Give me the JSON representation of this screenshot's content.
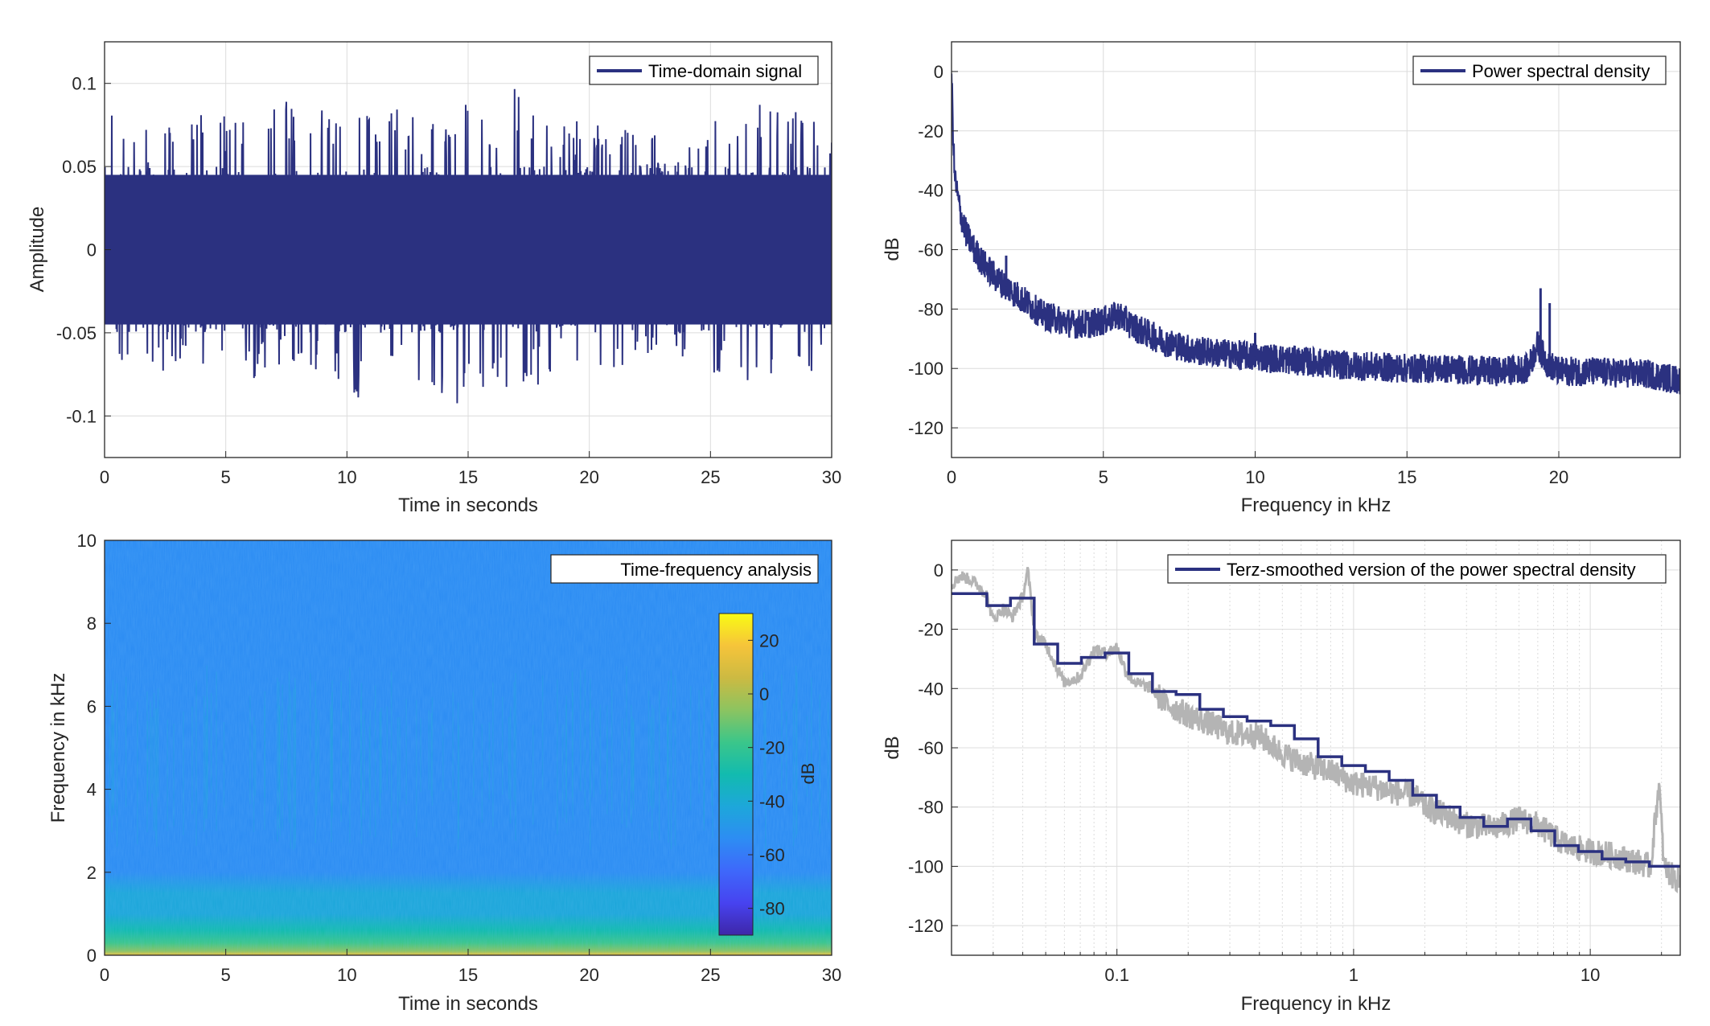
{
  "colors": {
    "signal": "#2B3180",
    "smooth_raw": "#B4B4B4",
    "grid": "#DCDCDC",
    "axis": "#262626",
    "text": "#262626"
  },
  "chart_data": [
    {
      "id": "time-domain",
      "type": "line",
      "legend": [
        "Time-domain signal"
      ],
      "legend_position": "top-right",
      "xlabel": "Time in seconds",
      "ylabel": "Amplitude",
      "xlim": [
        0,
        30
      ],
      "ylim": [
        -0.125,
        0.125
      ],
      "xticks": [
        0,
        5,
        10,
        15,
        20,
        25,
        30
      ],
      "xtick_labels": [
        "0",
        "5",
        "10",
        "15",
        "20",
        "25",
        "30"
      ],
      "yticks": [
        -0.1,
        -0.05,
        0,
        0.05,
        0.1
      ],
      "ytick_labels": [
        "-0.1",
        "-0.05",
        "0",
        "0.05",
        "0.1"
      ],
      "grid": true,
      "envelope": {
        "t": [
          0,
          0.5,
          1,
          2,
          3,
          4,
          5,
          6,
          7,
          8,
          9,
          10,
          11,
          12,
          13,
          14,
          15,
          16,
          16.9,
          18,
          19,
          20,
          21,
          22,
          23,
          24,
          25,
          26,
          27,
          28,
          29,
          30
        ],
        "max": [
          0.105,
          0.09,
          0.07,
          0.075,
          0.08,
          0.095,
          0.08,
          0.085,
          0.09,
          0.09,
          0.085,
          0.08,
          0.085,
          0.09,
          0.08,
          0.075,
          0.09,
          0.08,
          0.102,
          0.08,
          0.075,
          0.08,
          0.075,
          0.07,
          0.07,
          0.065,
          0.08,
          0.085,
          0.09,
          0.085,
          0.09,
          0.075
        ],
        "min": [
          -0.09,
          -0.07,
          -0.08,
          -0.075,
          -0.07,
          -0.085,
          -0.075,
          -0.08,
          -0.075,
          -0.07,
          -0.075,
          -0.095,
          -0.085,
          -0.08,
          -0.085,
          -0.09,
          -0.095,
          -0.08,
          -0.1,
          -0.08,
          -0.075,
          -0.07,
          -0.075,
          -0.065,
          -0.07,
          -0.07,
          -0.075,
          -0.08,
          -0.08,
          -0.085,
          -0.08,
          -0.08
        ]
      }
    },
    {
      "id": "psd",
      "type": "line",
      "legend": [
        "Power spectral density"
      ],
      "legend_position": "top-right",
      "xlabel": "Frequency in kHz",
      "ylabel": "dB",
      "xlim": [
        0,
        24
      ],
      "ylim": [
        -130,
        10
      ],
      "xticks": [
        0,
        5,
        10,
        15,
        20
      ],
      "xtick_labels": [
        "0",
        "5",
        "10",
        "15",
        "20"
      ],
      "yticks": [
        -120,
        -100,
        -80,
        -60,
        -40,
        -20,
        0
      ],
      "ytick_labels": [
        "-120",
        "-100",
        "-80",
        "-60",
        "-40",
        "-20",
        "0"
      ],
      "grid": true,
      "series": [
        {
          "x": [
            0,
            0.05,
            0.1,
            0.2,
            0.3,
            0.5,
            0.75,
            1,
            1.5,
            2,
            2.5,
            3,
            4,
            4.5,
            5,
            5.5,
            6,
            7,
            8,
            9,
            10,
            11,
            12,
            13,
            14,
            15,
            16,
            17,
            18,
            19,
            19.3,
            19.6,
            20,
            21,
            22,
            23,
            24
          ],
          "y": [
            0,
            -20,
            -35,
            -42,
            -48,
            -55,
            -60,
            -64,
            -70,
            -74,
            -78,
            -82,
            -85,
            -85,
            -84,
            -82,
            -86,
            -91,
            -94,
            -95,
            -96,
            -97,
            -98,
            -99,
            -99.5,
            -100,
            -100,
            -100.5,
            -101,
            -100,
            -92,
            -98,
            -101,
            -101,
            -101.5,
            -102,
            -104
          ],
          "spread": 5
        }
      ],
      "spikes": [
        {
          "x": 19.4,
          "y": -73
        },
        {
          "x": 19.7,
          "y": -78
        },
        {
          "x": 10.0,
          "y": -88
        },
        {
          "x": 1.8,
          "y": -62
        }
      ]
    },
    {
      "id": "spectrogram",
      "type": "heatmap",
      "legend": [
        "Time-frequency analysis"
      ],
      "legend_position": "top-right",
      "xlabel": "Time in seconds",
      "ylabel": "Frequency in kHz",
      "xlim": [
        0,
        30
      ],
      "ylim": [
        0,
        10
      ],
      "xticks": [
        0,
        5,
        10,
        15,
        20,
        25,
        30
      ],
      "xtick_labels": [
        "0",
        "5",
        "10",
        "15",
        "20",
        "25",
        "30"
      ],
      "yticks": [
        0,
        2,
        4,
        6,
        8,
        10
      ],
      "ytick_labels": [
        "0",
        "2",
        "4",
        "6",
        "8",
        "10"
      ],
      "colorbar": {
        "label": "dB",
        "clim": [
          -90,
          30
        ],
        "ticks": [
          -80,
          -60,
          -40,
          -20,
          0,
          20
        ],
        "tick_labels": [
          "-80",
          "-60",
          "-40",
          "-20",
          "0",
          "20"
        ],
        "colormap": [
          "#3E26A8",
          "#4743F0",
          "#3E68FB",
          "#2D8DF3",
          "#1DA7DA",
          "#12BBAF",
          "#3BC68A",
          "#8CC460",
          "#CCBA42",
          "#F6C43A",
          "#F9FB14"
        ]
      },
      "level_by_frequency": {
        "f": [
          0,
          0.1,
          0.3,
          0.6,
          1,
          1.5,
          2,
          3,
          4,
          5,
          5.5,
          6.5,
          8,
          10
        ],
        "db": [
          15,
          -2,
          -22,
          -33,
          -40,
          -46,
          -50,
          -53,
          -55,
          -53,
          -50,
          -52,
          -57,
          -58
        ]
      }
    },
    {
      "id": "terz",
      "type": "line",
      "legend": [
        "Terz-smoothed version of the power spectral density"
      ],
      "legend_position": "top-right",
      "xlabel": "Frequency in kHz",
      "ylabel": "dB",
      "xscale": "log",
      "xlim": [
        0.02,
        24
      ],
      "ylim": [
        -130,
        10
      ],
      "xticks": [
        0.1,
        1,
        10
      ],
      "xtick_labels": [
        "0.1",
        "1",
        "10"
      ],
      "yticks": [
        -120,
        -100,
        -80,
        -60,
        -40,
        -20,
        0
      ],
      "ytick_labels": [
        "-120",
        "-100",
        "-80",
        "-60",
        "-40",
        "-20",
        "0"
      ],
      "grid": true,
      "series": [
        {
          "name": "raw",
          "x": [
            0.02,
            0.022,
            0.025,
            0.028,
            0.03,
            0.033,
            0.036,
            0.04,
            0.042,
            0.045,
            0.05,
            0.055,
            0.06,
            0.07,
            0.08,
            0.09,
            0.1,
            0.11,
            0.12,
            0.14,
            0.16,
            0.2,
            0.25,
            0.3,
            0.4,
            0.5,
            0.6,
            0.8,
            1,
            1.2,
            1.5,
            1.8,
            2,
            2.5,
            3,
            4,
            5,
            6,
            7,
            8,
            10,
            12,
            15,
            18,
            19.5,
            20.5,
            22,
            24
          ],
          "y": [
            -5,
            -2,
            -4,
            -8,
            -17,
            -13,
            -16,
            -9,
            0,
            -22,
            -25,
            -32,
            -38,
            -36,
            -27,
            -28,
            -26,
            -35,
            -38,
            -40,
            -45,
            -49,
            -52,
            -55,
            -56,
            -62,
            -65,
            -68,
            -72,
            -73,
            -75,
            -76,
            -80,
            -83,
            -86,
            -87,
            -84,
            -86,
            -90,
            -93,
            -95,
            -96,
            -98,
            -100,
            -72,
            -100,
            -103,
            -105
          ]
        },
        {
          "name": "smoothed",
          "x": [
            0.02,
            0.0282,
            0.0355,
            0.0447,
            0.0562,
            0.0708,
            0.0891,
            0.1122,
            0.1413,
            0.1778,
            0.2239,
            0.2818,
            0.3548,
            0.4467,
            0.5623,
            0.7079,
            0.8913,
            1.122,
            1.413,
            1.778,
            2.239,
            2.818,
            3.548,
            4.467,
            5.623,
            7.079,
            8.913,
            11.22,
            14.13,
            17.78,
            24
          ],
          "y": [
            -8,
            -12,
            -9.5,
            -25,
            -31.5,
            -29.5,
            -28,
            -35,
            -41,
            -42,
            -47,
            -49.5,
            -51,
            -52.5,
            -57,
            -63,
            -66,
            -68,
            -71,
            -76,
            -80,
            -83.5,
            -86.5,
            -84,
            -88,
            -93,
            -95,
            -97.5,
            -98.5,
            -100,
            -100
          ]
        }
      ]
    }
  ]
}
